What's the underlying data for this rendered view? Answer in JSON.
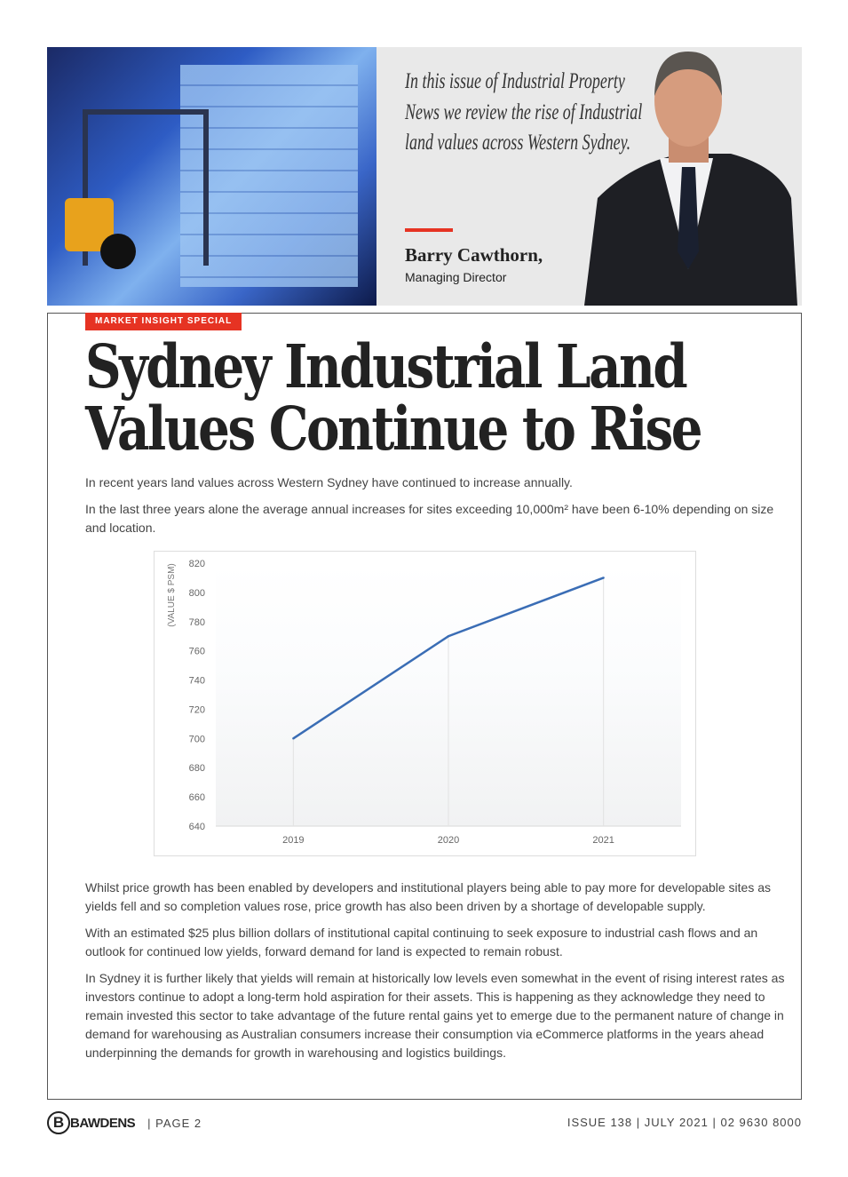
{
  "hero": {
    "quote": "In this issue of Industrial Property News we review the rise of Industrial land values across Western Sydney.",
    "name": "Barry Cawthorn,",
    "role": "Managing Director"
  },
  "article": {
    "tag": "MARKET INSIGHT SPECIAL",
    "title_line1": "Sydney Industrial Land",
    "title_line2": "Values Continue to Rise",
    "intro1": "In recent years land values across Western Sydney have continued to increase annually.",
    "intro2": "In the last three years alone the average annual increases for sites exceeding 10,000m² have been 6-10% depending on size and location.",
    "body1": "Whilst price growth has been enabled by developers and institutional players being able to pay more for developable sites as yields fell and so completion values rose, price growth has also been driven by a shortage of developable supply.",
    "body2": "With an estimated $25 plus billion dollars of institutional capital continuing to seek exposure to industrial cash flows and an outlook for continued low yields, forward demand for land is expected to remain robust.",
    "body3": "In Sydney it is further likely that yields will remain at historically low levels even somewhat in the event of rising interest rates as investors continue to adopt a long-term hold aspiration for their assets. This is happening as they acknowledge they need to remain invested this sector to take advantage of the future rental gains yet to emerge due to the permanent nature of change in demand for warehousing as Australian consumers increase their consumption via eCommerce platforms in the years ahead underpinning the demands for growth in warehousing and logistics buildings."
  },
  "chart_data": {
    "type": "line",
    "categories": [
      "2019",
      "2020",
      "2021"
    ],
    "values": [
      700,
      770,
      810
    ],
    "ylabel": "(VALUE $ PSM)",
    "ylim": [
      640,
      820
    ],
    "yticks": [
      640,
      660,
      680,
      700,
      720,
      740,
      760,
      780,
      800,
      820
    ],
    "grid": "vertical drop lines at categories",
    "color": "#3a6db5"
  },
  "footer": {
    "logo": "BAWDENS",
    "page": "|  PAGE 2",
    "right": "ISSUE 138  |  JULY 2021  |  02 9630 8000"
  },
  "colors": {
    "accent": "#e63323",
    "line": "#3a6db5"
  }
}
